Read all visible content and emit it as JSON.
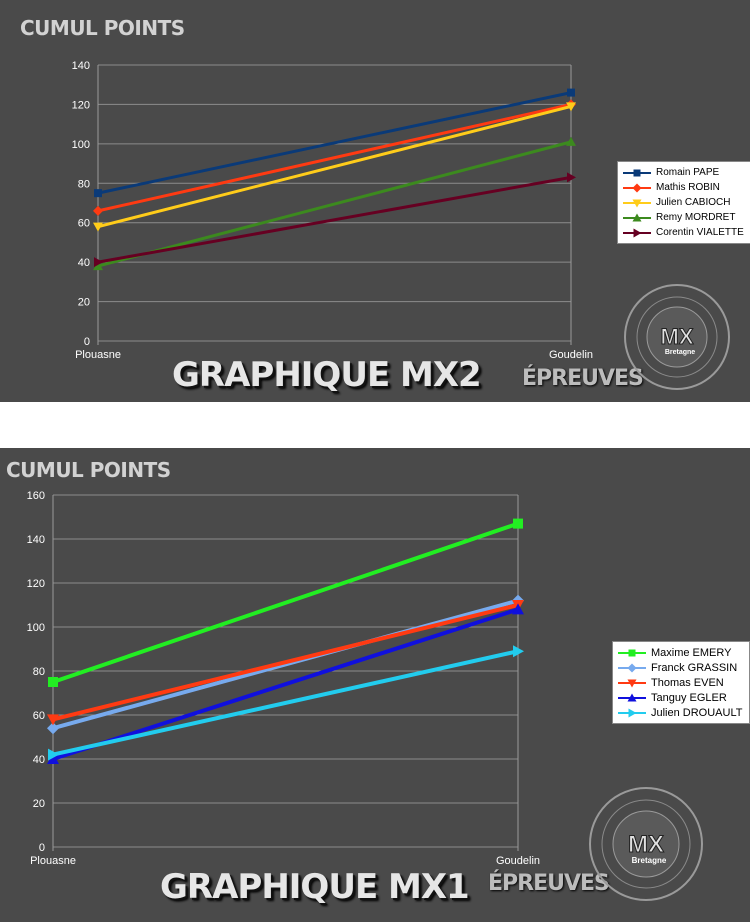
{
  "chart_data": [
    {
      "type": "line",
      "title": "GRAPHIQUE MX2",
      "ylabel": "CUMUL POINTS",
      "xlabel": "ÉPREUVES",
      "categories": [
        "Plouasne",
        "Goudelin"
      ],
      "ylim": [
        0,
        140
      ],
      "ytick_step": 20,
      "yticks": [
        "0",
        "20",
        "40",
        "60",
        "80",
        "100",
        "120",
        "140"
      ],
      "grid": true,
      "legend_position": "right",
      "series": [
        {
          "name": "Romain PAPE",
          "values": [
            75,
            126
          ],
          "color": "#0a3a78",
          "marker": "square"
        },
        {
          "name": "Mathis ROBIN",
          "values": [
            66,
            120
          ],
          "color": "#ff3a12",
          "marker": "diamond"
        },
        {
          "name": "Julien CABIOCH",
          "values": [
            58,
            119
          ],
          "color": "#ffcc1a",
          "marker": "triangle-down"
        },
        {
          "name": "Remy MORDRET",
          "values": [
            38,
            101
          ],
          "color": "#3c8a1e",
          "marker": "triangle-up"
        },
        {
          "name": "Corentin VIALETTE",
          "values": [
            40,
            83
          ],
          "color": "#660022",
          "marker": "triangle-right"
        }
      ]
    },
    {
      "type": "line",
      "title": "GRAPHIQUE MX1",
      "ylabel": "CUMUL POINTS",
      "xlabel": "ÉPREUVES",
      "categories": [
        "Plouasne",
        "Goudelin"
      ],
      "ylim": [
        0,
        160
      ],
      "ytick_step": 20,
      "yticks": [
        "0",
        "20",
        "40",
        "60",
        "80",
        "100",
        "120",
        "140",
        "160"
      ],
      "grid": true,
      "legend_position": "right",
      "series": [
        {
          "name": "Maxime EMERY",
          "values": [
            75,
            147
          ],
          "color": "#22ee22",
          "marker": "square"
        },
        {
          "name": "Franck GRASSIN",
          "values": [
            54,
            112
          ],
          "color": "#77aaee",
          "marker": "diamond"
        },
        {
          "name": "Thomas EVEN",
          "values": [
            58,
            110
          ],
          "color": "#ff3a12",
          "marker": "triangle-down"
        },
        {
          "name": "Tanguy EGLER",
          "values": [
            40,
            108
          ],
          "color": "#1010dd",
          "marker": "triangle-up"
        },
        {
          "name": "Julien DROUAULT",
          "values": [
            42,
            89
          ],
          "color": "#22ccee",
          "marker": "triangle-right"
        }
      ]
    }
  ],
  "logo": {
    "text": "MX",
    "subtext": "Bretagne"
  }
}
